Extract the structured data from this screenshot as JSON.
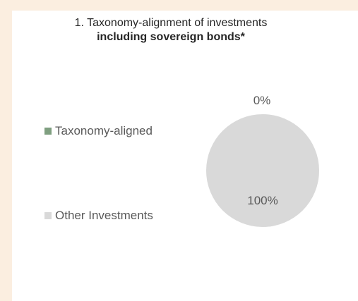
{
  "title": {
    "line1": "1. Taxonomy-alignment of investments",
    "line2": "including sovereign bonds*"
  },
  "legend": [
    {
      "label": "Taxonomy-aligned",
      "color": "#7f9f80"
    },
    {
      "label": "Other Investments",
      "color": "#d9d9d9"
    }
  ],
  "chart_data": {
    "type": "pie",
    "categories": [
      "Taxonomy-aligned",
      "Other Investments"
    ],
    "values": [
      0,
      100
    ],
    "data_labels": [
      "0%",
      "100%"
    ],
    "colors": [
      "#7f9f80",
      "#d9d9d9"
    ],
    "title": "1. Taxonomy-alignment of investments including sovereign bonds*",
    "legend_position": "left"
  }
}
